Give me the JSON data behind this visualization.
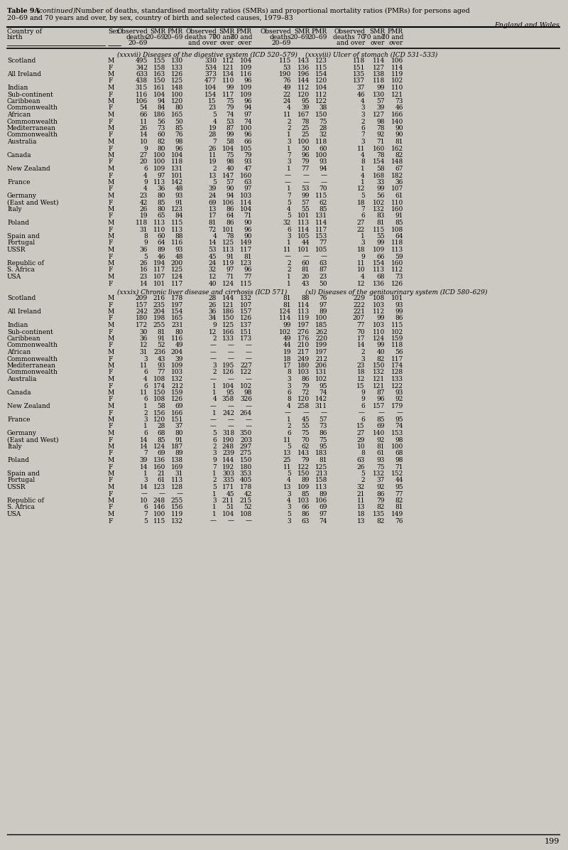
{
  "title_bold": "Table 9A",
  "title_italic_part": "(continued)",
  "title_rest": " Number of deaths, standardised mortality ratios (SMRs) and proportional mortality ratios (PMRs) for persons aged",
  "title_line2": "20–69 and 70 years and over, by sex, country of birth and selected causes, 1979–83",
  "title_italic": "England and Wales",
  "section1_label": "(xxxvii) Diseases of the digestive system (ICD 520–579)",
  "section2_label": "(xxxviii) Ulcer of stomach (ICD 531–533)",
  "section3_label": "(xxxix) Chronic liver disease and cirrhosis (ICD 571)",
  "section4_label": "(xl) Diseases of the genitourinary system (ICD 580–629)",
  "page_number": "199",
  "rows_section12": [
    [
      "Scotland",
      "M",
      "495",
      "155",
      "130",
      "330",
      "112",
      "104",
      "115",
      "143",
      "123",
      "118",
      "114",
      "106"
    ],
    [
      "",
      "F",
      "342",
      "158",
      "133",
      "534",
      "121",
      "109",
      "53",
      "136",
      "115",
      "151",
      "127",
      "114"
    ],
    [
      "All Ireland",
      "M",
      "633",
      "163",
      "126",
      "373",
      "134",
      "116",
      "190",
      "196",
      "154",
      "135",
      "138",
      "119"
    ],
    [
      "",
      "F",
      "438",
      "150",
      "125",
      "477",
      "110",
      "96",
      "76",
      "144",
      "120",
      "137",
      "118",
      "102"
    ],
    [
      "Indian",
      "M",
      "315",
      "161",
      "148",
      "104",
      "99",
      "109",
      "49",
      "112",
      "104",
      "37",
      "99",
      "110"
    ],
    [
      "Sub-continent",
      "F",
      "116",
      "104",
      "100",
      "154",
      "117",
      "109",
      "22",
      "120",
      "112",
      "46",
      "130",
      "121"
    ],
    [
      "Caribbean",
      "M",
      "106",
      "94",
      "120",
      "15",
      "75",
      "96",
      "24",
      "95",
      "122",
      "4",
      "57",
      "73"
    ],
    [
      "Commonwealth",
      "F",
      "54",
      "84",
      "80",
      "23",
      "79",
      "94",
      "4",
      "39",
      "38",
      "3",
      "39",
      "46"
    ],
    [
      "African",
      "M",
      "66",
      "186",
      "165",
      "5",
      "74",
      "97",
      "11",
      "167",
      "150",
      "3",
      "127",
      "166"
    ],
    [
      "Commonwealth",
      "F",
      "11",
      "56",
      "50",
      "4",
      "53",
      "74",
      "2",
      "78",
      "75",
      "2",
      "98",
      "140"
    ],
    [
      "Mediterranean",
      "M",
      "26",
      "73",
      "85",
      "19",
      "87",
      "100",
      "2",
      "25",
      "28",
      "6",
      "78",
      "90"
    ],
    [
      "Commonwealth",
      "F",
      "14",
      "60",
      "76",
      "28",
      "99",
      "96",
      "1",
      "25",
      "32",
      "7",
      "92",
      "90"
    ],
    [
      "Australia",
      "M",
      "10",
      "82",
      "98",
      "7",
      "58",
      "66",
      "3",
      "100",
      "118",
      "3",
      "71",
      "81"
    ],
    [
      "",
      "F",
      "9",
      "80",
      "96",
      "26",
      "104",
      "105",
      "1",
      "50",
      "60",
      "11",
      "160",
      "162"
    ],
    [
      "Canada",
      "M",
      "27",
      "100",
      "104",
      "11",
      "75",
      "79",
      "7",
      "96",
      "100",
      "4",
      "78",
      "82"
    ],
    [
      "",
      "F",
      "20",
      "100",
      "118",
      "19",
      "98",
      "93",
      "3",
      "79",
      "93",
      "8",
      "154",
      "148"
    ],
    [
      "New Zealand",
      "M",
      "6",
      "109",
      "131",
      "2",
      "40",
      "47",
      "1",
      "77",
      "94",
      "1",
      "58",
      "67"
    ],
    [
      "",
      "F",
      "4",
      "97",
      "101",
      "13",
      "147",
      "160",
      "—",
      "—",
      "—",
      "4",
      "168",
      "182"
    ],
    [
      "France",
      "M",
      "9",
      "113",
      "142",
      "5",
      "57",
      "63",
      "—",
      "—",
      "—",
      "1",
      "33",
      "36"
    ],
    [
      "",
      "F",
      "4",
      "36",
      "48",
      "39",
      "90",
      "97",
      "1",
      "53",
      "70",
      "12",
      "99",
      "107"
    ],
    [
      "Germany",
      "M",
      "23",
      "80",
      "93",
      "24",
      "94",
      "103",
      "7",
      "99",
      "115",
      "5",
      "56",
      "61"
    ],
    [
      "(East and West)",
      "F",
      "42",
      "85",
      "91",
      "69",
      "106",
      "114",
      "5",
      "57",
      "62",
      "18",
      "102",
      "110"
    ],
    [
      "Italy",
      "M",
      "26",
      "80",
      "123",
      "13",
      "86",
      "104",
      "4",
      "55",
      "85",
      "7",
      "132",
      "160"
    ],
    [
      "",
      "F",
      "19",
      "65",
      "84",
      "17",
      "64",
      "71",
      "5",
      "101",
      "131",
      "6",
      "83",
      "91"
    ],
    [
      "Poland",
      "M",
      "118",
      "113",
      "115",
      "81",
      "86",
      "90",
      "32",
      "113",
      "114",
      "27",
      "81",
      "85"
    ],
    [
      "",
      "F",
      "31",
      "110",
      "113",
      "72",
      "101",
      "96",
      "6",
      "114",
      "117",
      "22",
      "115",
      "108"
    ],
    [
      "Spain and",
      "M",
      "8",
      "60",
      "88",
      "4",
      "78",
      "90",
      "3",
      "105",
      "153",
      "1",
      "55",
      "64"
    ],
    [
      "Portugal",
      "F",
      "9",
      "64",
      "116",
      "14",
      "125",
      "149",
      "1",
      "44",
      "77",
      "3",
      "99",
      "118"
    ],
    [
      "USSR",
      "M",
      "36",
      "89",
      "93",
      "53",
      "113",
      "117",
      "11",
      "101",
      "105",
      "18",
      "109",
      "113"
    ],
    [
      "",
      "F",
      "5",
      "46",
      "48",
      "45",
      "91",
      "81",
      "—",
      "—",
      "—",
      "9",
      "66",
      "59"
    ],
    [
      "Republic of",
      "M",
      "26",
      "194",
      "200",
      "24",
      "119",
      "123",
      "2",
      "60",
      "63",
      "11",
      "154",
      "160"
    ],
    [
      "S. Africa",
      "F",
      "16",
      "117",
      "125",
      "32",
      "97",
      "96",
      "2",
      "81",
      "87",
      "10",
      "113",
      "112"
    ],
    [
      "USA",
      "M",
      "23",
      "107",
      "124",
      "12",
      "71",
      "77",
      "1",
      "20",
      "23",
      "4",
      "68",
      "73"
    ],
    [
      "",
      "F",
      "14",
      "101",
      "117",
      "40",
      "124",
      "115",
      "1",
      "43",
      "50",
      "12",
      "136",
      "126"
    ]
  ],
  "rows_section34": [
    [
      "Scotland",
      "M",
      "209",
      "216",
      "178",
      "28",
      "144",
      "132",
      "81",
      "88",
      "76",
      "229",
      "108",
      "101"
    ],
    [
      "",
      "F",
      "157",
      "235",
      "197",
      "26",
      "121",
      "107",
      "81",
      "114",
      "97",
      "222",
      "103",
      "93"
    ],
    [
      "All Ireland",
      "M",
      "242",
      "204",
      "154",
      "36",
      "186",
      "157",
      "124",
      "113",
      "89",
      "221",
      "112",
      "99"
    ],
    [
      "",
      "F",
      "180",
      "198",
      "165",
      "34",
      "150",
      "126",
      "114",
      "119",
      "100",
      "207",
      "99",
      "86"
    ],
    [
      "Indian",
      "M",
      "172",
      "255",
      "231",
      "9",
      "125",
      "137",
      "99",
      "197",
      "185",
      "77",
      "103",
      "115"
    ],
    [
      "Sub-continent",
      "F",
      "30",
      "81",
      "80",
      "12",
      "166",
      "151",
      "102",
      "276",
      "262",
      "70",
      "110",
      "102"
    ],
    [
      "Caribbean",
      "M",
      "36",
      "91",
      "116",
      "2",
      "133",
      "173",
      "49",
      "176",
      "220",
      "17",
      "124",
      "159"
    ],
    [
      "Commonwealth",
      "F",
      "12",
      "52",
      "49",
      "—",
      "—",
      "—",
      "44",
      "210",
      "199",
      "14",
      "99",
      "118"
    ],
    [
      "African",
      "M",
      "31",
      "236",
      "204",
      "—",
      "—",
      "—",
      "19",
      "217",
      "197",
      "2",
      "40",
      "56"
    ],
    [
      "Commonwealth",
      "F",
      "3",
      "43",
      "39",
      "—",
      "—",
      "—",
      "18",
      "249",
      "212",
      "3",
      "82",
      "117"
    ],
    [
      "Mediterranean",
      "M",
      "11",
      "93",
      "109",
      "3",
      "195",
      "227",
      "17",
      "180",
      "206",
      "23",
      "150",
      "174"
    ],
    [
      "Commonwealth",
      "F",
      "6",
      "77",
      "103",
      "2",
      "126",
      "122",
      "8",
      "103",
      "131",
      "18",
      "132",
      "128"
    ],
    [
      "Australia",
      "M",
      "4",
      "108",
      "132",
      "—",
      "—",
      "—",
      "3",
      "86",
      "102",
      "12",
      "121",
      "133"
    ],
    [
      "",
      "F",
      "6",
      "174",
      "212",
      "1",
      "104",
      "102",
      "3",
      "79",
      "95",
      "15",
      "121",
      "122"
    ],
    [
      "Canada",
      "M",
      "11",
      "150",
      "159",
      "1",
      "95",
      "98",
      "6",
      "72",
      "74",
      "9",
      "87",
      "93"
    ],
    [
      "",
      "F",
      "6",
      "108",
      "126",
      "4",
      "358",
      "326",
      "8",
      "120",
      "142",
      "9",
      "96",
      "92"
    ],
    [
      "New Zealand",
      "M",
      "1",
      "58",
      "69",
      "—",
      "—",
      "—",
      "4",
      "258",
      "311",
      "6",
      "157",
      "179"
    ],
    [
      "",
      "F",
      "2",
      "156",
      "166",
      "1",
      "242",
      "264",
      "—",
      "—",
      "—",
      "—",
      "—",
      "—"
    ],
    [
      "France",
      "M",
      "3",
      "120",
      "151",
      "—",
      "—",
      "—",
      "1",
      "45",
      "57",
      "6",
      "85",
      "95"
    ],
    [
      "",
      "F",
      "1",
      "28",
      "37",
      "—",
      "—",
      "—",
      "2",
      "55",
      "73",
      "15",
      "69",
      "74"
    ],
    [
      "Germany",
      "M",
      "6",
      "68",
      "80",
      "5",
      "318",
      "350",
      "6",
      "75",
      "86",
      "27",
      "140",
      "153"
    ],
    [
      "(East and West)",
      "F",
      "14",
      "85",
      "91",
      "6",
      "190",
      "203",
      "11",
      "70",
      "75",
      "29",
      "92",
      "98"
    ],
    [
      "Italy",
      "M",
      "14",
      "124",
      "187",
      "2",
      "248",
      "297",
      "5",
      "62",
      "95",
      "10",
      "81",
      "100"
    ],
    [
      "",
      "F",
      "7",
      "69",
      "89",
      "3",
      "239",
      "275",
      "13",
      "143",
      "183",
      "8",
      "61",
      "68"
    ],
    [
      "Poland",
      "M",
      "39",
      "136",
      "138",
      "9",
      "144",
      "150",
      "25",
      "79",
      "81",
      "63",
      "93",
      "98"
    ],
    [
      "",
      "F",
      "14",
      "160",
      "169",
      "7",
      "192",
      "180",
      "11",
      "122",
      "125",
      "26",
      "75",
      "71"
    ],
    [
      "Spain and",
      "M",
      "1",
      "21",
      "31",
      "1",
      "303",
      "353",
      "5",
      "150",
      "213",
      "5",
      "132",
      "152"
    ],
    [
      "Portugal",
      "F",
      "3",
      "61",
      "113",
      "2",
      "335",
      "405",
      "4",
      "89",
      "158",
      "2",
      "37",
      "44"
    ],
    [
      "USSR",
      "M",
      "14",
      "123",
      "128",
      "5",
      "171",
      "178",
      "13",
      "109",
      "113",
      "32",
      "92",
      "95"
    ],
    [
      "",
      "F",
      "—",
      "—",
      "—",
      "1",
      "45",
      "42",
      "3",
      "85",
      "89",
      "21",
      "86",
      "77"
    ],
    [
      "Republic of",
      "M",
      "10",
      "248",
      "255",
      "3",
      "211",
      "215",
      "4",
      "103",
      "106",
      "11",
      "79",
      "82"
    ],
    [
      "S. Africa",
      "F",
      "6",
      "146",
      "156",
      "1",
      "51",
      "52",
      "3",
      "66",
      "69",
      "13",
      "82",
      "81"
    ],
    [
      "USA",
      "M",
      "7",
      "100",
      "119",
      "1",
      "104",
      "108",
      "5",
      "86",
      "97",
      "18",
      "135",
      "149"
    ],
    [
      "",
      "F",
      "5",
      "115",
      "132",
      "—",
      "—",
      "—",
      "3",
      "63",
      "74",
      "13",
      "82",
      "76"
    ]
  ],
  "bg_color": "#ccc8c2",
  "text_color": "#000000",
  "font_size": 6.5,
  "title_font_size": 6.8
}
